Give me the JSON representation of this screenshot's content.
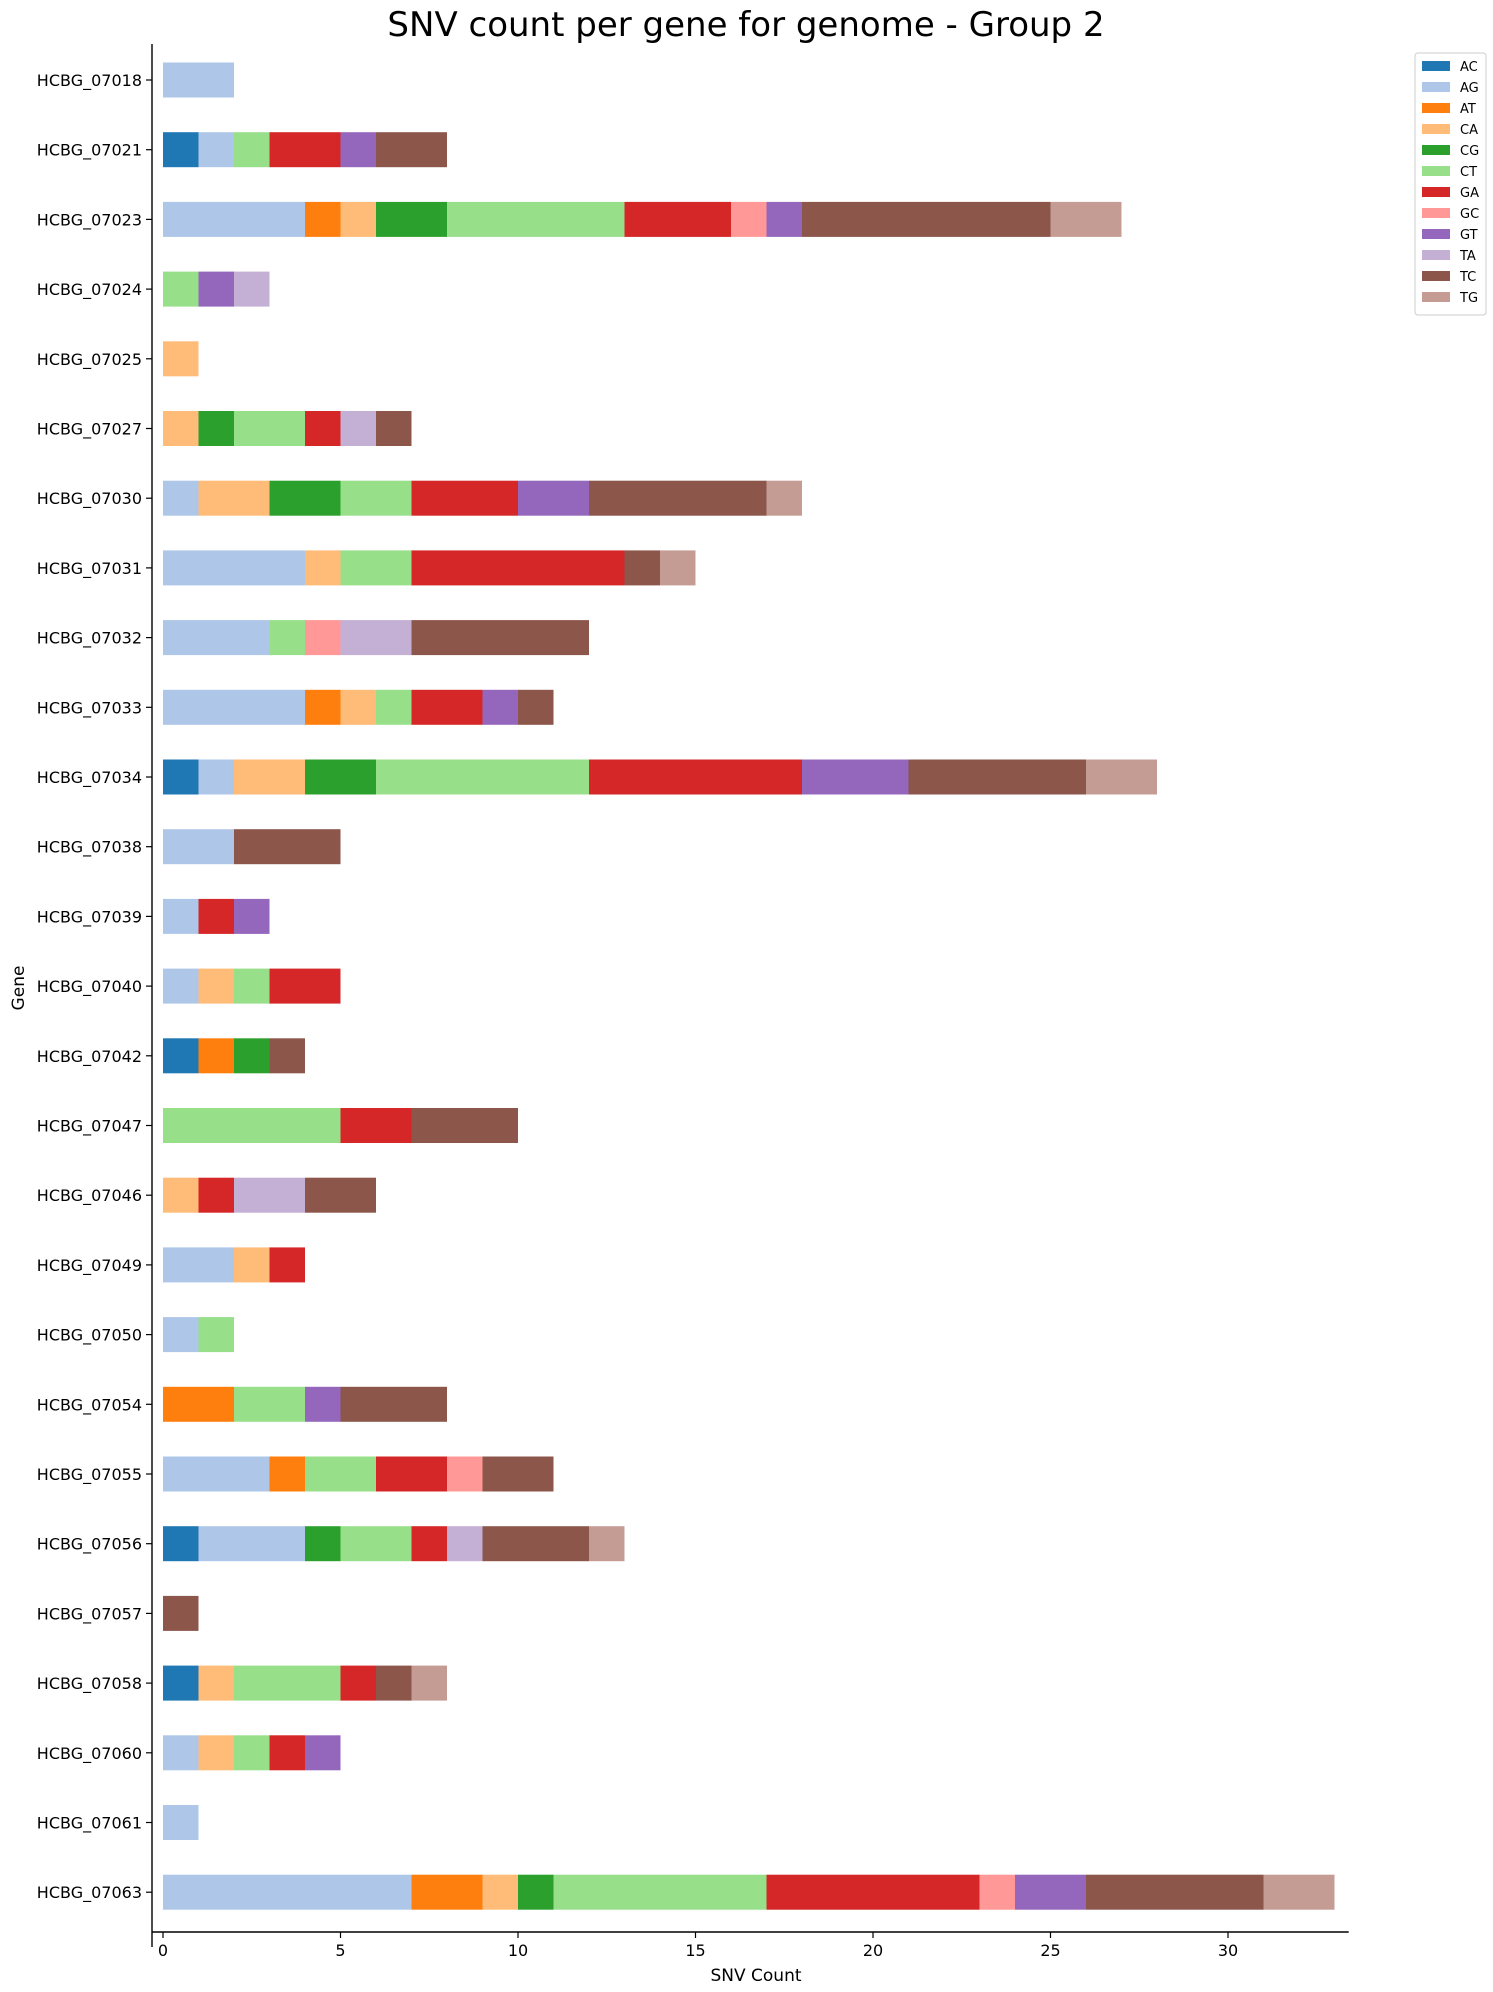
{
  "chart_data": {
    "type": "bar",
    "orientation": "horizontal",
    "stacked": true,
    "title": "SNV count per gene for genome - Group 2",
    "xlabel": "SNV Count",
    "ylabel": "Gene",
    "xlim": [
      0,
      33.4
    ],
    "xticks": [
      0,
      5,
      10,
      15,
      20,
      25,
      30
    ],
    "grid": false,
    "legend_position": "top-right",
    "categories": [
      "HCBG_07018",
      "HCBG_07021",
      "HCBG_07023",
      "HCBG_07024",
      "HCBG_07025",
      "HCBG_07027",
      "HCBG_07030",
      "HCBG_07031",
      "HCBG_07032",
      "HCBG_07033",
      "HCBG_07034",
      "HCBG_07038",
      "HCBG_07039",
      "HCBG_07040",
      "HCBG_07042",
      "HCBG_07047",
      "HCBG_07046",
      "HCBG_07049",
      "HCBG_07050",
      "HCBG_07054",
      "HCBG_07055",
      "HCBG_07056",
      "HCBG_07057",
      "HCBG_07058",
      "HCBG_07060",
      "HCBG_07061",
      "HCBG_07063"
    ],
    "series": [
      {
        "name": "AC",
        "color": "#1f77b4",
        "values": [
          0,
          1,
          0,
          0,
          0,
          0,
          0,
          0,
          0,
          0,
          1,
          0,
          0,
          0,
          1,
          0,
          0,
          0,
          0,
          0,
          0,
          1,
          0,
          1,
          0,
          0,
          0
        ]
      },
      {
        "name": "AG",
        "color": "#aec7e8",
        "values": [
          2,
          1,
          4,
          0,
          0,
          0,
          1,
          4,
          3,
          4,
          1,
          2,
          1,
          1,
          0,
          0,
          0,
          2,
          1,
          0,
          3,
          3,
          0,
          0,
          1,
          1,
          7
        ]
      },
      {
        "name": "AT",
        "color": "#ff7f0e",
        "values": [
          0,
          0,
          1,
          0,
          0,
          0,
          0,
          0,
          0,
          1,
          0,
          0,
          0,
          0,
          1,
          0,
          0,
          0,
          0,
          2,
          1,
          0,
          0,
          0,
          0,
          0,
          2
        ]
      },
      {
        "name": "CA",
        "color": "#ffbb78",
        "values": [
          0,
          0,
          1,
          0,
          1,
          1,
          2,
          1,
          0,
          1,
          2,
          0,
          0,
          1,
          0,
          0,
          1,
          1,
          0,
          0,
          0,
          0,
          0,
          1,
          1,
          0,
          1
        ]
      },
      {
        "name": "CG",
        "color": "#2ca02c",
        "values": [
          0,
          0,
          2,
          0,
          0,
          1,
          2,
          0,
          0,
          0,
          2,
          0,
          0,
          0,
          1,
          0,
          0,
          0,
          0,
          0,
          0,
          1,
          0,
          0,
          0,
          0,
          1
        ]
      },
      {
        "name": "CT",
        "color": "#98df8a",
        "values": [
          0,
          1,
          5,
          1,
          0,
          2,
          2,
          2,
          1,
          1,
          6,
          0,
          0,
          1,
          0,
          5,
          0,
          0,
          1,
          2,
          2,
          2,
          0,
          3,
          1,
          0,
          6
        ]
      },
      {
        "name": "GA",
        "color": "#d62728",
        "values": [
          0,
          2,
          3,
          0,
          0,
          1,
          3,
          6,
          0,
          2,
          6,
          0,
          1,
          2,
          0,
          2,
          1,
          1,
          0,
          0,
          2,
          1,
          0,
          1,
          1,
          0,
          6
        ]
      },
      {
        "name": "GC",
        "color": "#ff9896",
        "values": [
          0,
          0,
          1,
          0,
          0,
          0,
          0,
          0,
          1,
          0,
          0,
          0,
          0,
          0,
          0,
          0,
          0,
          0,
          0,
          0,
          1,
          0,
          0,
          0,
          0,
          0,
          1
        ]
      },
      {
        "name": "GT",
        "color": "#9467bd",
        "values": [
          0,
          1,
          1,
          1,
          0,
          0,
          2,
          0,
          0,
          1,
          3,
          0,
          1,
          0,
          0,
          0,
          0,
          0,
          0,
          1,
          0,
          0,
          0,
          0,
          1,
          0,
          2
        ]
      },
      {
        "name": "TA",
        "color": "#c5b0d5",
        "values": [
          0,
          0,
          0,
          1,
          0,
          1,
          0,
          0,
          2,
          0,
          0,
          0,
          0,
          0,
          0,
          0,
          2,
          0,
          0,
          0,
          0,
          1,
          0,
          0,
          0,
          0,
          0
        ]
      },
      {
        "name": "TC",
        "color": "#8c564b",
        "values": [
          0,
          2,
          7,
          0,
          0,
          1,
          5,
          1,
          5,
          1,
          5,
          3,
          0,
          0,
          1,
          3,
          2,
          0,
          0,
          3,
          2,
          3,
          1,
          1,
          0,
          0,
          5
        ]
      },
      {
        "name": "TG",
        "color": "#c49c94",
        "values": [
          0,
          0,
          2,
          0,
          0,
          0,
          1,
          1,
          0,
          0,
          2,
          0,
          0,
          0,
          0,
          0,
          0,
          0,
          0,
          0,
          0,
          1,
          0,
          1,
          0,
          0,
          2
        ]
      }
    ]
  }
}
